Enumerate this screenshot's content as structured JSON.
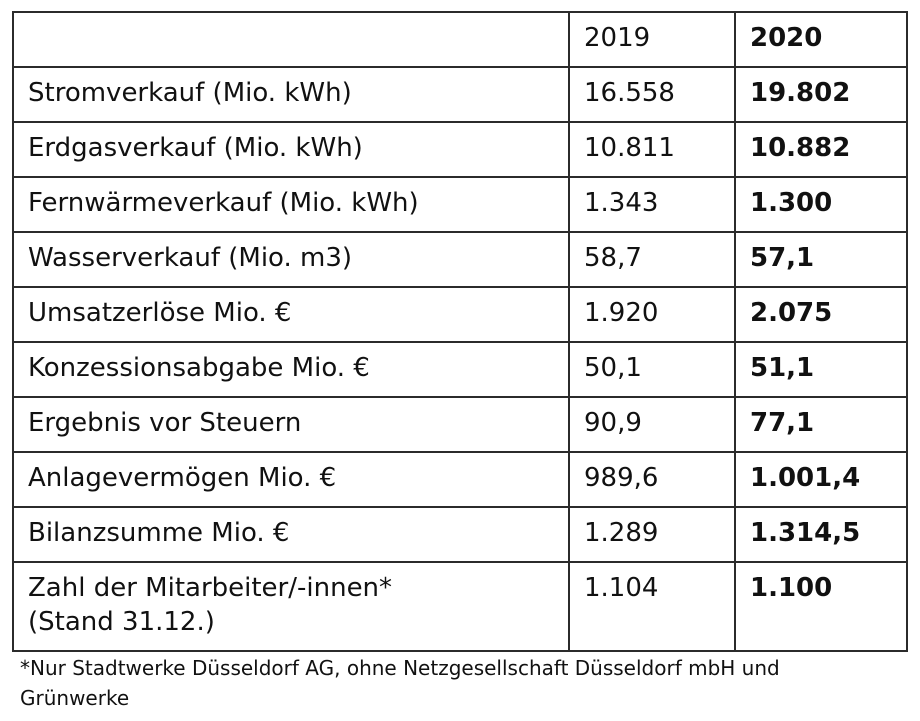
{
  "table": {
    "headers": {
      "label": "",
      "year_2019": "2019",
      "year_2020": "2020"
    },
    "rows": [
      {
        "label": "Stromverkauf (Mio. kWh)",
        "v2019": "16.558",
        "v2020": "19.802"
      },
      {
        "label": "Erdgasverkauf (Mio. kWh)",
        "v2019": "10.811",
        "v2020": "10.882"
      },
      {
        "label": "Fernwärmeverkauf (Mio. kWh)",
        "v2019": "1.343",
        "v2020": "1.300"
      },
      {
        "label": "Wasserverkauf (Mio. m3)",
        "v2019": "58,7",
        "v2020": "57,1"
      },
      {
        "label": "Umsatzerlöse Mio. €",
        "v2019": "1.920",
        "v2020": "2.075"
      },
      {
        "label": "Konzessionsabgabe Mio. €",
        "v2019": "50,1",
        "v2020": "51,1"
      },
      {
        "label": "Ergebnis vor Steuern",
        "v2019": "90,9",
        "v2020": "77,1"
      },
      {
        "label": "Anlagevermögen Mio. €",
        "v2019": "989,6",
        "v2020": "1.001,4"
      },
      {
        "label": "Bilanzsumme Mio. €",
        "v2019": "1.289",
        "v2020": "1.314,5"
      },
      {
        "label_line1": "Zahl der Mitarbeiter/-innen*",
        "label_line2": "(Stand 31.12.)",
        "v2019": "1.104",
        "v2020": "1.100"
      }
    ]
  },
  "footnote": {
    "line1": "*Nur Stadtwerke Düsseldorf AG, ohne Netzgesellschaft Düsseldorf mbH und",
    "line2": "Grünwerke"
  }
}
